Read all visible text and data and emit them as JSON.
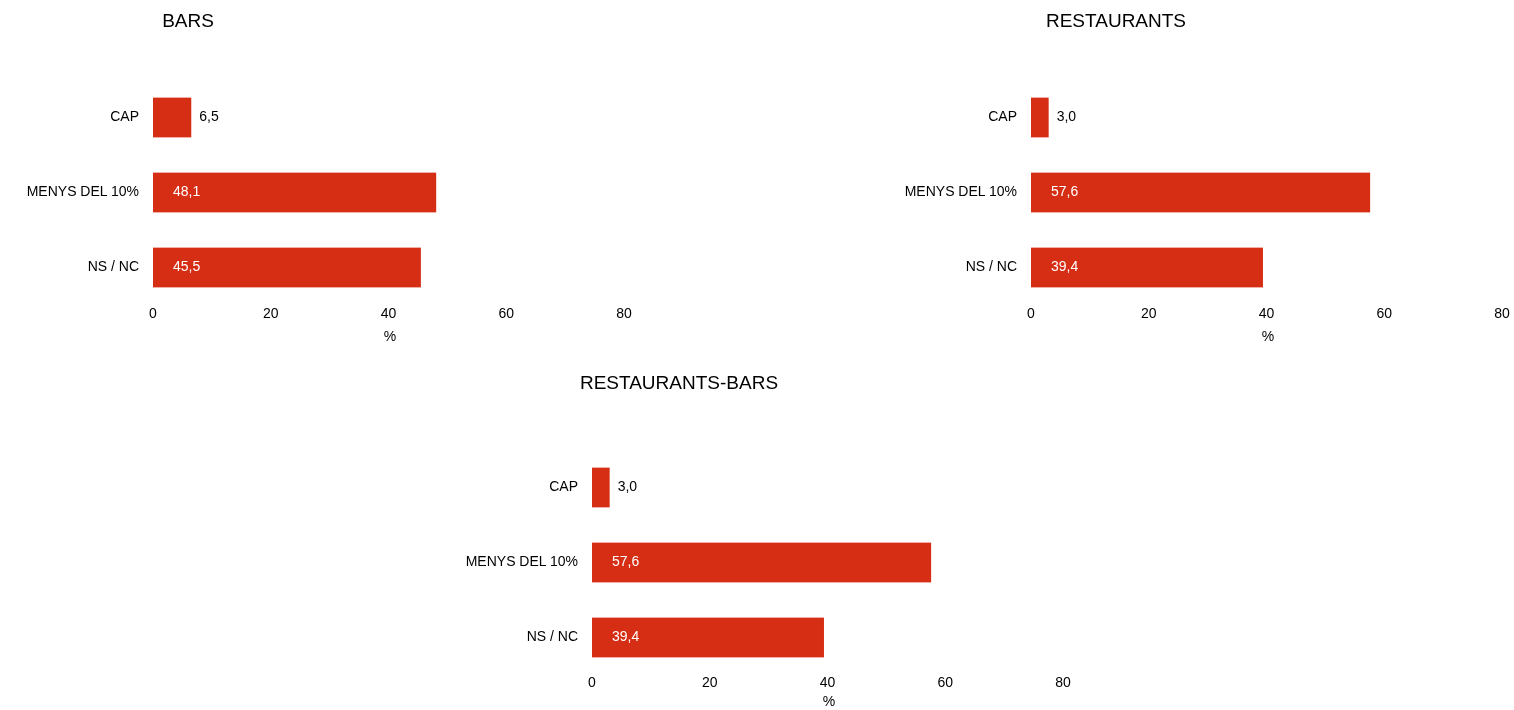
{
  "chart_data": [
    {
      "type": "bar",
      "orientation": "horizontal",
      "title": "BARS",
      "xlabel": "%",
      "categories": [
        "CAP",
        "MENYS DEL 10%",
        "NS / NC"
      ],
      "values": [
        6.5,
        48.1,
        45.5
      ],
      "value_labels": [
        "6,5",
        "48,1",
        "45,5"
      ],
      "color": "#d62e14",
      "xlim": [
        0,
        80
      ],
      "xticks": [
        0,
        20,
        40,
        60,
        80
      ],
      "grid": false
    },
    {
      "type": "bar",
      "orientation": "horizontal",
      "title": "RESTAURANTS",
      "xlabel": "%",
      "categories": [
        "CAP",
        "MENYS DEL 10%",
        "NS / NC"
      ],
      "values": [
        3.0,
        57.6,
        39.4
      ],
      "value_labels": [
        "3,0",
        "57,6",
        "39,4"
      ],
      "color": "#d62e14",
      "xlim": [
        0,
        80
      ],
      "xticks": [
        0,
        20,
        40,
        60,
        80
      ],
      "grid": false
    },
    {
      "type": "bar",
      "orientation": "horizontal",
      "title": "RESTAURANTS-BARS",
      "xlabel": "%",
      "categories": [
        "CAP",
        "MENYS DEL 10%",
        "NS / NC"
      ],
      "values": [
        3.0,
        57.6,
        39.4
      ],
      "value_labels": [
        "3,0",
        "57,6",
        "39,4"
      ],
      "color": "#d62e14",
      "xlim": [
        0,
        80
      ],
      "xticks": [
        0,
        20,
        40,
        60,
        80
      ],
      "grid": false
    }
  ]
}
